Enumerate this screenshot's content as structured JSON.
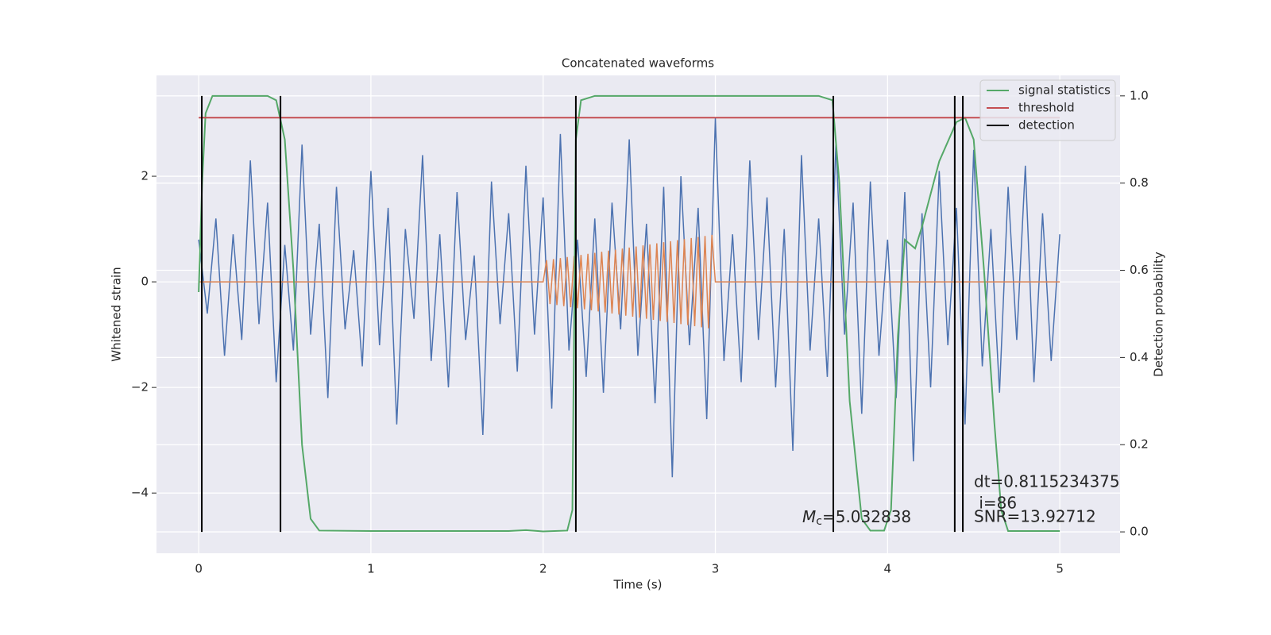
{
  "chart_data": {
    "type": "line",
    "title": "Concatenated waveforms",
    "xlabel": "Time (s)",
    "ylabel": "Whitened strain",
    "y2label": "Detection probability",
    "xlim": [
      -0.245,
      5.35
    ],
    "xticks": [
      0,
      1,
      2,
      3,
      4,
      5
    ],
    "ylim": [
      -5.14,
      3.91
    ],
    "yticks": [
      {
        "value": -4,
        "label": "−4"
      },
      {
        "value": -2,
        "label": "−2"
      },
      0,
      2
    ],
    "y2lim": [
      -0.049,
      1.047
    ],
    "y2ticks": [
      {
        "value": 0,
        "label": "0.0"
      },
      {
        "value": 0.2,
        "label": "0.2"
      },
      {
        "value": 0.4,
        "label": "0.4"
      },
      {
        "value": 0.6,
        "label": "0.6"
      },
      {
        "value": 0.8,
        "label": "0.8"
      },
      {
        "value": 1,
        "label": "1.0"
      }
    ],
    "grid": true,
    "legend": "upper right",
    "series": [
      {
        "color": "#4c72b0",
        "x": [
          0,
          0.05,
          0.1,
          0.15,
          0.2,
          0.25,
          0.3,
          0.35,
          0.4,
          0.45,
          0.5,
          0.55,
          0.6,
          0.65,
          0.7,
          0.75,
          0.8,
          0.85,
          0.9,
          0.95,
          1,
          1.05,
          1.1,
          1.15,
          1.2,
          1.25,
          1.3,
          1.35,
          1.4,
          1.45,
          1.5,
          1.55,
          1.6,
          1.65,
          1.7,
          1.75,
          1.8,
          1.85,
          1.9,
          1.95,
          2,
          2.05,
          2.1,
          2.15,
          2.2,
          2.25,
          2.3,
          2.35,
          2.4,
          2.45,
          2.5,
          2.55,
          2.6,
          2.65,
          2.7,
          2.75,
          2.8,
          2.85,
          2.9,
          2.95,
          3,
          3.05,
          3.1,
          3.15,
          3.2,
          3.25,
          3.3,
          3.35,
          3.4,
          3.45,
          3.5,
          3.55,
          3.6,
          3.65,
          3.7,
          3.75,
          3.8,
          3.85,
          3.9,
          3.95,
          4,
          4.05,
          4.1,
          4.15,
          4.2,
          4.25,
          4.3,
          4.35,
          4.4,
          4.45,
          4.5,
          4.55,
          4.6,
          4.65,
          4.7,
          4.75,
          4.8,
          4.85,
          4.9,
          4.95,
          5
        ],
        "values": [
          0.8,
          -0.6,
          1.2,
          -1.4,
          0.9,
          -1.1,
          2.3,
          -0.8,
          1.5,
          -1.9,
          0.7,
          -1.3,
          2.6,
          -1.0,
          1.1,
          -2.2,
          1.8,
          -0.9,
          0.6,
          -1.6,
          2.1,
          -1.2,
          1.4,
          -2.7,
          1.0,
          -0.7,
          2.4,
          -1.5,
          0.9,
          -2.0,
          1.7,
          -1.1,
          0.5,
          -2.9,
          1.9,
          -0.8,
          1.3,
          -1.7,
          2.2,
          -1.0,
          1.6,
          -2.4,
          2.8,
          -1.3,
          0.8,
          -1.8,
          1.2,
          -2.1,
          1.5,
          -0.9,
          2.7,
          -1.4,
          1.1,
          -2.3,
          1.8,
          -3.7,
          2.0,
          -1.2,
          1.4,
          -2.6,
          3.1,
          -1.5,
          0.9,
          -1.9,
          2.3,
          -1.1,
          1.6,
          -2.0,
          1.0,
          -3.2,
          2.4,
          -1.3,
          1.2,
          -1.8,
          2.6,
          -1.0,
          1.5,
          -2.5,
          1.9,
          -1.4,
          0.8,
          -2.2,
          1.7,
          -3.4,
          1.3,
          -2.0,
          2.1,
          -1.2,
          1.4,
          -2.7,
          2.5,
          -1.6,
          1.0,
          -2.1,
          1.8,
          -1.1,
          2.2,
          -1.9,
          1.3,
          -1.5,
          0.9
        ]
      },
      {
        "color": "#dd8452",
        "x": [
          0,
          2,
          2.02,
          2.04,
          2.06,
          2.08,
          2.1,
          2.12,
          2.14,
          2.16,
          2.18,
          2.2,
          2.22,
          2.24,
          2.26,
          2.28,
          2.3,
          2.32,
          2.34,
          2.36,
          2.38,
          2.4,
          2.42,
          2.44,
          2.46,
          2.48,
          2.5,
          2.52,
          2.54,
          2.56,
          2.58,
          2.6,
          2.62,
          2.64,
          2.66,
          2.68,
          2.7,
          2.72,
          2.74,
          2.76,
          2.78,
          2.8,
          2.82,
          2.84,
          2.86,
          2.88,
          2.9,
          2.92,
          2.94,
          2.96,
          2.98,
          3,
          5
        ],
        "values": [
          0,
          0,
          0.41,
          -0.42,
          0.43,
          -0.44,
          0.45,
          -0.46,
          0.47,
          -0.48,
          0.49,
          -0.5,
          0.51,
          -0.52,
          0.53,
          -0.54,
          0.55,
          -0.56,
          0.57,
          -0.58,
          0.59,
          -0.6,
          0.61,
          -0.62,
          0.63,
          -0.64,
          0.65,
          -0.66,
          0.67,
          -0.68,
          0.69,
          -0.7,
          0.71,
          -0.72,
          0.73,
          -0.74,
          0.75,
          -0.76,
          0.77,
          -0.78,
          0.79,
          -0.8,
          0.81,
          -0.82,
          0.83,
          -0.84,
          0.85,
          -0.86,
          0.87,
          -0.88,
          0.89,
          0,
          0
        ]
      },
      {
        "name": "signal statistics",
        "color": "#55a868",
        "axis": "y2",
        "x": [
          0,
          0.02,
          0.04,
          0.08,
          0.4,
          0.45,
          0.5,
          0.55,
          0.6,
          0.65,
          0.7,
          1,
          1.8,
          1.9,
          2,
          2.14,
          2.17,
          2.19,
          2.22,
          2.3,
          3.6,
          3.68,
          3.72,
          3.78,
          3.85,
          3.9,
          3.98,
          4.02,
          4.06,
          4.1,
          4.16,
          4.2,
          4.3,
          4.4,
          4.45,
          4.5,
          4.56,
          4.62,
          4.66,
          4.7,
          5
        ],
        "values": [
          0.55,
          0.8,
          0.96,
          1,
          1,
          0.99,
          0.9,
          0.6,
          0.2,
          0.03,
          0.003,
          0.002,
          0.002,
          0.004,
          0.001,
          0.003,
          0.05,
          0.9,
          0.99,
          1,
          1,
          0.99,
          0.8,
          0.3,
          0.03,
          0.003,
          0.003,
          0.05,
          0.45,
          0.67,
          0.65,
          0.7,
          0.85,
          0.94,
          0.95,
          0.9,
          0.6,
          0.25,
          0.05,
          0.002,
          0.002
        ]
      },
      {
        "name": "threshold",
        "color": "#c44e52",
        "axis": "y2",
        "x": [
          0,
          5
        ],
        "values": [
          0.95,
          0.95
        ]
      },
      {
        "name": "detection",
        "color": "#000000",
        "axis": "y2",
        "kind": "vlines",
        "x": [
          0.018,
          0.475,
          2.19,
          3.685,
          4.39,
          4.437
        ],
        "span": [
          0,
          1
        ]
      }
    ],
    "annotations": {
      "mc": {
        "symbol": "M",
        "subscript": "c",
        "text": "=5.032838"
      },
      "stats": [
        "dt=0.8115234375",
        " i=86",
        "SNR=13.92712"
      ]
    }
  }
}
